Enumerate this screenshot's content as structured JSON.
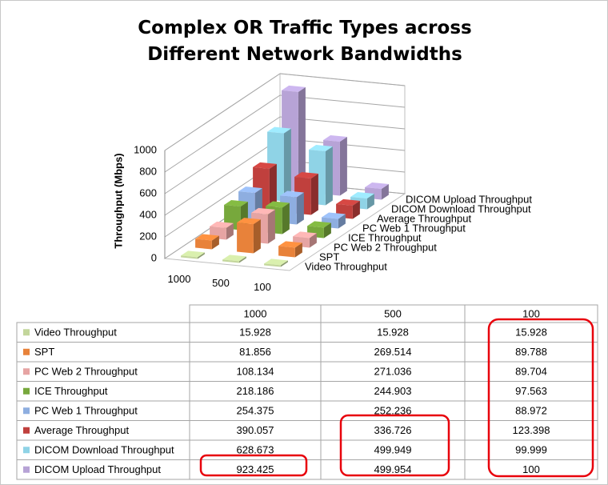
{
  "chart_data": {
    "type": "bar",
    "title": "Complex OR Traffic Types across Different Network Bandwidths",
    "y_label": "Throughput (Mbps)",
    "categories": [
      "1000",
      "500",
      "100"
    ],
    "ylim": [
      0,
      1000
    ],
    "yticks": [
      0,
      200,
      400,
      600,
      800,
      1000
    ],
    "grid": true,
    "series": [
      {
        "name": "Video Throughput",
        "color": "#c3d69b",
        "values": [
          15.928,
          15.928,
          15.928
        ]
      },
      {
        "name": "SPT",
        "color": "#e8823a",
        "values": [
          81.856,
          269.514,
          89.788
        ]
      },
      {
        "name": "PC Web 2 Throughput",
        "color": "#e6a4a3",
        "values": [
          108.134,
          271.036,
          89.704
        ]
      },
      {
        "name": "ICE Throughput",
        "color": "#77a83c",
        "values": [
          218.186,
          244.903,
          97.563
        ]
      },
      {
        "name": "PC Web 1 Throughput",
        "color": "#8eaee0",
        "values": [
          254.375,
          252.236,
          88.972
        ]
      },
      {
        "name": "Average Throughput",
        "color": "#c0403d",
        "values": [
          390.057,
          336.726,
          123.398
        ]
      },
      {
        "name": "DICOM Download Throughput",
        "color": "#8fd3e6",
        "values": [
          628.673,
          499.949,
          99.999
        ]
      },
      {
        "name": "DICOM Upload Throughput",
        "color": "#b7a3d6",
        "values": [
          923.425,
          499.954,
          100
        ]
      }
    ]
  }
}
